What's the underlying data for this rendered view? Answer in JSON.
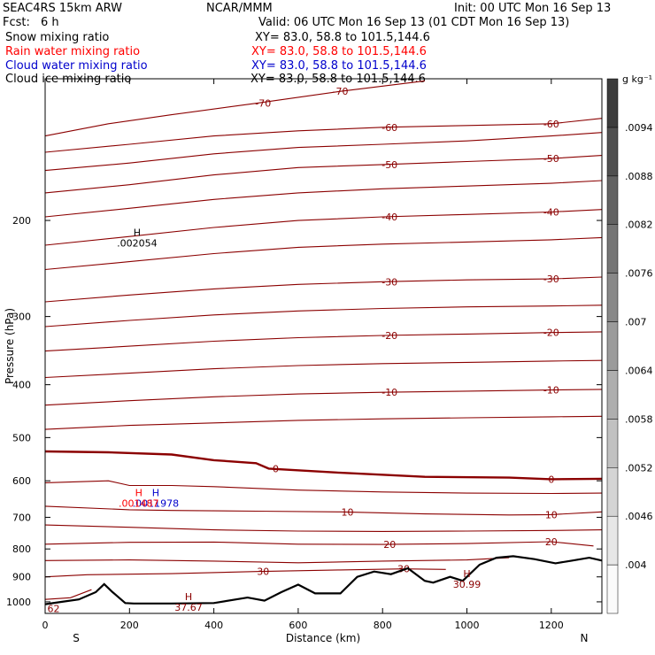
{
  "header": {
    "model": "SEAC4RS 15km ARW",
    "org": "NCAR/MMM",
    "init": "Init: 00 UTC Mon 16 Sep 13",
    "fcst_label": "Fcst:",
    "fcst_value": "6 h",
    "valid": "Valid: 06 UTC Mon 16 Sep 13 (01 CDT Mon 16 Sep 13)"
  },
  "legend": [
    {
      "name": "Snow mixing ratio",
      "xy": "XY=  83.0, 58.8 to 101.5,144.6",
      "color": "#000000"
    },
    {
      "name": "Rain water mixing ratio",
      "xy": "XY=  83.0, 58.8 to 101.5,144.6",
      "color": "#ff0000"
    },
    {
      "name": "Cloud water mixing ratio",
      "xy": "XY=  83.0, 58.8 to 101.5,144.6",
      "color": "#0000cc"
    },
    {
      "name": "Cloud ice mixing ratio",
      "xy": "XY=  83.0, 58.8 to 101.5,144.6",
      "color": "#000000"
    }
  ],
  "colorbar": {
    "unit": "g kg⁻¹",
    "ticks": [
      ".004",
      ".0046",
      ".0052",
      ".0058",
      ".0064",
      ".007",
      ".0076",
      ".0082",
      ".0088",
      ".0094"
    ]
  },
  "chart_data": {
    "type": "line",
    "xlabel": "Distance (km)",
    "ylabel": "Pressure (hPa)",
    "xlim": [
      0,
      1320
    ],
    "ylim": [
      1050,
      110
    ],
    "yscale": "log",
    "x_ticks": [
      0,
      200,
      400,
      600,
      800,
      1000,
      1200
    ],
    "y_ticks": [
      200,
      300,
      400,
      500,
      600,
      700,
      800,
      900,
      1000
    ],
    "x_end_labels": {
      "left": "S",
      "right": "N"
    },
    "temperature_contours_C": [
      {
        "level": -70,
        "label": "-70",
        "points": [
          [
            0,
            140
          ],
          [
            150,
            133
          ],
          [
            300,
            128
          ],
          [
            500,
            122
          ],
          [
            700,
            116
          ],
          [
            900,
            111
          ]
        ]
      },
      {
        "level": -60,
        "label": "-60",
        "points": [
          [
            0,
            150
          ],
          [
            200,
            145
          ],
          [
            400,
            140
          ],
          [
            600,
            137
          ],
          [
            800,
            135
          ],
          [
            1000,
            134
          ],
          [
            1200,
            133
          ],
          [
            1320,
            130
          ]
        ]
      },
      {
        "level": -55,
        "label": "",
        "points": [
          [
            0,
            162
          ],
          [
            200,
            157
          ],
          [
            400,
            151
          ],
          [
            600,
            147
          ],
          [
            800,
            145
          ],
          [
            1000,
            143
          ],
          [
            1200,
            140
          ],
          [
            1320,
            138
          ]
        ]
      },
      {
        "level": -50,
        "label": "-50",
        "points": [
          [
            0,
            178
          ],
          [
            200,
            172
          ],
          [
            400,
            165
          ],
          [
            600,
            160
          ],
          [
            800,
            158
          ],
          [
            1000,
            156
          ],
          [
            1200,
            154
          ],
          [
            1320,
            152
          ]
        ]
      },
      {
        "level": -45,
        "label": "",
        "points": [
          [
            0,
            197
          ],
          [
            200,
            190
          ],
          [
            400,
            183
          ],
          [
            600,
            178
          ],
          [
            800,
            175
          ],
          [
            1000,
            173
          ],
          [
            1200,
            171
          ],
          [
            1320,
            169
          ]
        ]
      },
      {
        "level": -40,
        "label": "-40",
        "points": [
          [
            0,
            222
          ],
          [
            200,
            214
          ],
          [
            400,
            206
          ],
          [
            600,
            200
          ],
          [
            800,
            197
          ],
          [
            1000,
            195
          ],
          [
            1200,
            193
          ],
          [
            1320,
            191
          ]
        ]
      },
      {
        "level": -35,
        "label": "",
        "points": [
          [
            0,
            246
          ],
          [
            200,
            238
          ],
          [
            400,
            230
          ],
          [
            600,
            224
          ],
          [
            800,
            221
          ],
          [
            1000,
            219
          ],
          [
            1200,
            217
          ],
          [
            1320,
            215
          ]
        ]
      },
      {
        "level": -30,
        "label": "-30",
        "points": [
          [
            0,
            282
          ],
          [
            200,
            274
          ],
          [
            400,
            267
          ],
          [
            600,
            262
          ],
          [
            800,
            259
          ],
          [
            1000,
            257
          ],
          [
            1200,
            256
          ],
          [
            1320,
            254
          ]
        ]
      },
      {
        "level": -25,
        "label": "",
        "points": [
          [
            0,
            313
          ],
          [
            200,
            305
          ],
          [
            400,
            298
          ],
          [
            600,
            293
          ],
          [
            800,
            290
          ],
          [
            1000,
            288
          ],
          [
            1200,
            287
          ],
          [
            1320,
            286
          ]
        ]
      },
      {
        "level": -20,
        "label": "-20",
        "points": [
          [
            0,
            347
          ],
          [
            200,
            340
          ],
          [
            400,
            333
          ],
          [
            600,
            328
          ],
          [
            800,
            325
          ],
          [
            1000,
            323
          ],
          [
            1200,
            321
          ],
          [
            1320,
            320
          ]
        ]
      },
      {
        "level": -15,
        "label": "",
        "points": [
          [
            0,
            388
          ],
          [
            200,
            381
          ],
          [
            400,
            374
          ],
          [
            600,
            369
          ],
          [
            800,
            366
          ],
          [
            1000,
            364
          ],
          [
            1200,
            362
          ],
          [
            1320,
            361
          ]
        ]
      },
      {
        "level": -10,
        "label": "-10",
        "points": [
          [
            0,
            436
          ],
          [
            200,
            428
          ],
          [
            400,
            421
          ],
          [
            600,
            416
          ],
          [
            800,
            413
          ],
          [
            1000,
            411
          ],
          [
            1200,
            409
          ],
          [
            1320,
            408
          ]
        ]
      },
      {
        "level": -5,
        "label": "",
        "points": [
          [
            0,
            483
          ],
          [
            200,
            475
          ],
          [
            400,
            470
          ],
          [
            600,
            465
          ],
          [
            800,
            462
          ],
          [
            1000,
            460
          ],
          [
            1200,
            458
          ],
          [
            1320,
            457
          ]
        ]
      },
      {
        "level": 0,
        "label": "0",
        "points": [
          [
            0,
            530
          ],
          [
            150,
            532
          ],
          [
            300,
            537
          ],
          [
            400,
            550
          ],
          [
            500,
            557
          ],
          [
            530,
            570
          ],
          [
            700,
            580
          ],
          [
            900,
            590
          ],
          [
            1100,
            592
          ],
          [
            1200,
            596
          ],
          [
            1320,
            595
          ]
        ]
      },
      {
        "level": 5,
        "label": "",
        "points": [
          [
            0,
            605
          ],
          [
            150,
            600
          ],
          [
            200,
            612
          ],
          [
            300,
            612
          ],
          [
            400,
            615
          ],
          [
            600,
            624
          ],
          [
            800,
            629
          ],
          [
            1000,
            632
          ],
          [
            1200,
            633
          ],
          [
            1320,
            632
          ]
        ]
      },
      {
        "level": 10,
        "label": "10",
        "points": [
          [
            0,
            668
          ],
          [
            200,
            678
          ],
          [
            300,
            680
          ],
          [
            500,
            682
          ],
          [
            700,
            684
          ],
          [
            900,
            690
          ],
          [
            1100,
            693
          ],
          [
            1200,
            692
          ],
          [
            1320,
            684
          ]
        ]
      },
      {
        "level": 15,
        "label": "",
        "points": [
          [
            0,
            723
          ],
          [
            200,
            730
          ],
          [
            400,
            738
          ],
          [
            600,
            742
          ],
          [
            800,
            743
          ],
          [
            1000,
            742
          ],
          [
            1200,
            740
          ],
          [
            1320,
            738
          ]
        ]
      },
      {
        "level": 20,
        "label": "20",
        "points": [
          [
            0,
            784
          ],
          [
            200,
            778
          ],
          [
            400,
            777
          ],
          [
            600,
            784
          ],
          [
            800,
            785
          ],
          [
            1000,
            782
          ],
          [
            1200,
            776
          ],
          [
            1300,
            790
          ]
        ]
      },
      {
        "level": 25,
        "label": "",
        "points": [
          [
            0,
            840
          ],
          [
            200,
            838
          ],
          [
            400,
            842
          ],
          [
            600,
            848
          ],
          [
            800,
            842
          ],
          [
            1000,
            838
          ],
          [
            1100,
            830
          ]
        ]
      },
      {
        "level": 30,
        "label": "30",
        "points": [
          [
            0,
            900
          ],
          [
            100,
            892
          ],
          [
            300,
            888
          ],
          [
            500,
            880
          ],
          [
            700,
            874
          ],
          [
            850,
            870
          ],
          [
            950,
            872
          ]
        ]
      },
      {
        "level": 35,
        "label": "",
        "points": [
          [
            0,
            990
          ],
          [
            60,
            983
          ],
          [
            110,
            950
          ]
        ]
      }
    ],
    "terrain_surface_hPa": {
      "x": [
        0,
        40,
        80,
        120,
        140,
        160,
        190,
        210,
        300,
        400,
        480,
        520,
        560,
        600,
        640,
        700,
        740,
        780,
        820,
        860,
        900,
        920,
        960,
        990,
        1030,
        1070,
        1110,
        1160,
        1210,
        1250,
        1290,
        1320
      ],
      "y": [
        1010,
        1000,
        990,
        960,
        928,
        960,
        1005,
        1007,
        1007,
        1005,
        982,
        995,
        960,
        930,
        965,
        965,
        900,
        880,
        890,
        868,
        915,
        922,
        900,
        915,
        855,
        830,
        825,
        835,
        850,
        840,
        830,
        840
      ]
    },
    "extrema": [
      {
        "symbol": "H",
        "value": ".002054",
        "x": 218,
        "p": 215,
        "field": "snow"
      },
      {
        "symbol": "H",
        "value": ".0011978",
        "x": 262,
        "p": 645,
        "field": "cloud water"
      },
      {
        "symbol": "H",
        "value": ".001487",
        "x": 222,
        "p": 645,
        "field": "rain water"
      },
      {
        "symbol": "H",
        "value": "37.67",
        "x": 340,
        "p": 1000,
        "field": "temperature"
      },
      {
        "symbol": "H",
        "value": "30.99",
        "x": 1000,
        "p": 908,
        "field": "temperature"
      },
      {
        "symbol": "",
        "value": "62",
        "x": 20,
        "p": 1005,
        "field": "temperature"
      }
    ]
  }
}
